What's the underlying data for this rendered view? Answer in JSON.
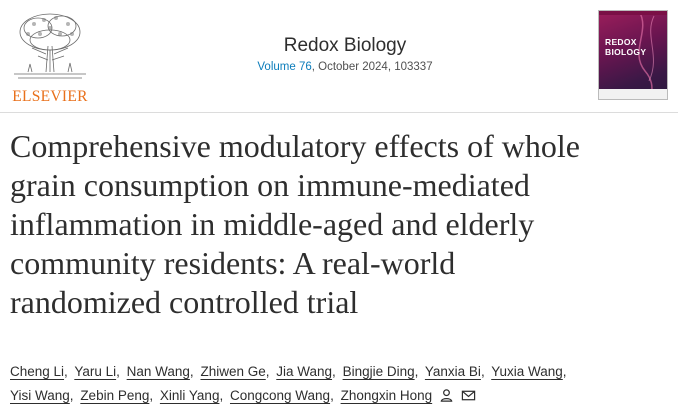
{
  "header": {
    "publisher_logo_text": "ELSEVIER",
    "journal_name": "Redox Biology",
    "volume_link": "Volume 76",
    "issue_info": ", October 2024, 103337",
    "cover_title_line1": "REDOX",
    "cover_title_line2": "BIOLOGY"
  },
  "article": {
    "title_lines": [
      "Comprehensive modulatory effects of whole",
      "grain consumption on immune-mediated",
      "inflammation in middle-aged and elderly",
      "community residents: A real-world",
      "randomized controlled trial"
    ],
    "authors": [
      "Cheng Li",
      "Yaru Li",
      "Nan Wang",
      "Zhiwen Ge",
      "Jia Wang",
      "Bingjie Ding",
      "Yanxia Bi",
      "Yuxia Wang",
      "Yisi Wang",
      "Zebin Peng",
      "Xinli Yang",
      "Congcong Wang",
      "Zhongxin Hong"
    ],
    "corresponding_icons": [
      "person-icon",
      "envelope-icon"
    ]
  },
  "colors": {
    "publisher_orange": "#e9711c",
    "link_blue": "#0c7dbb",
    "text": "#2e2e2e"
  }
}
